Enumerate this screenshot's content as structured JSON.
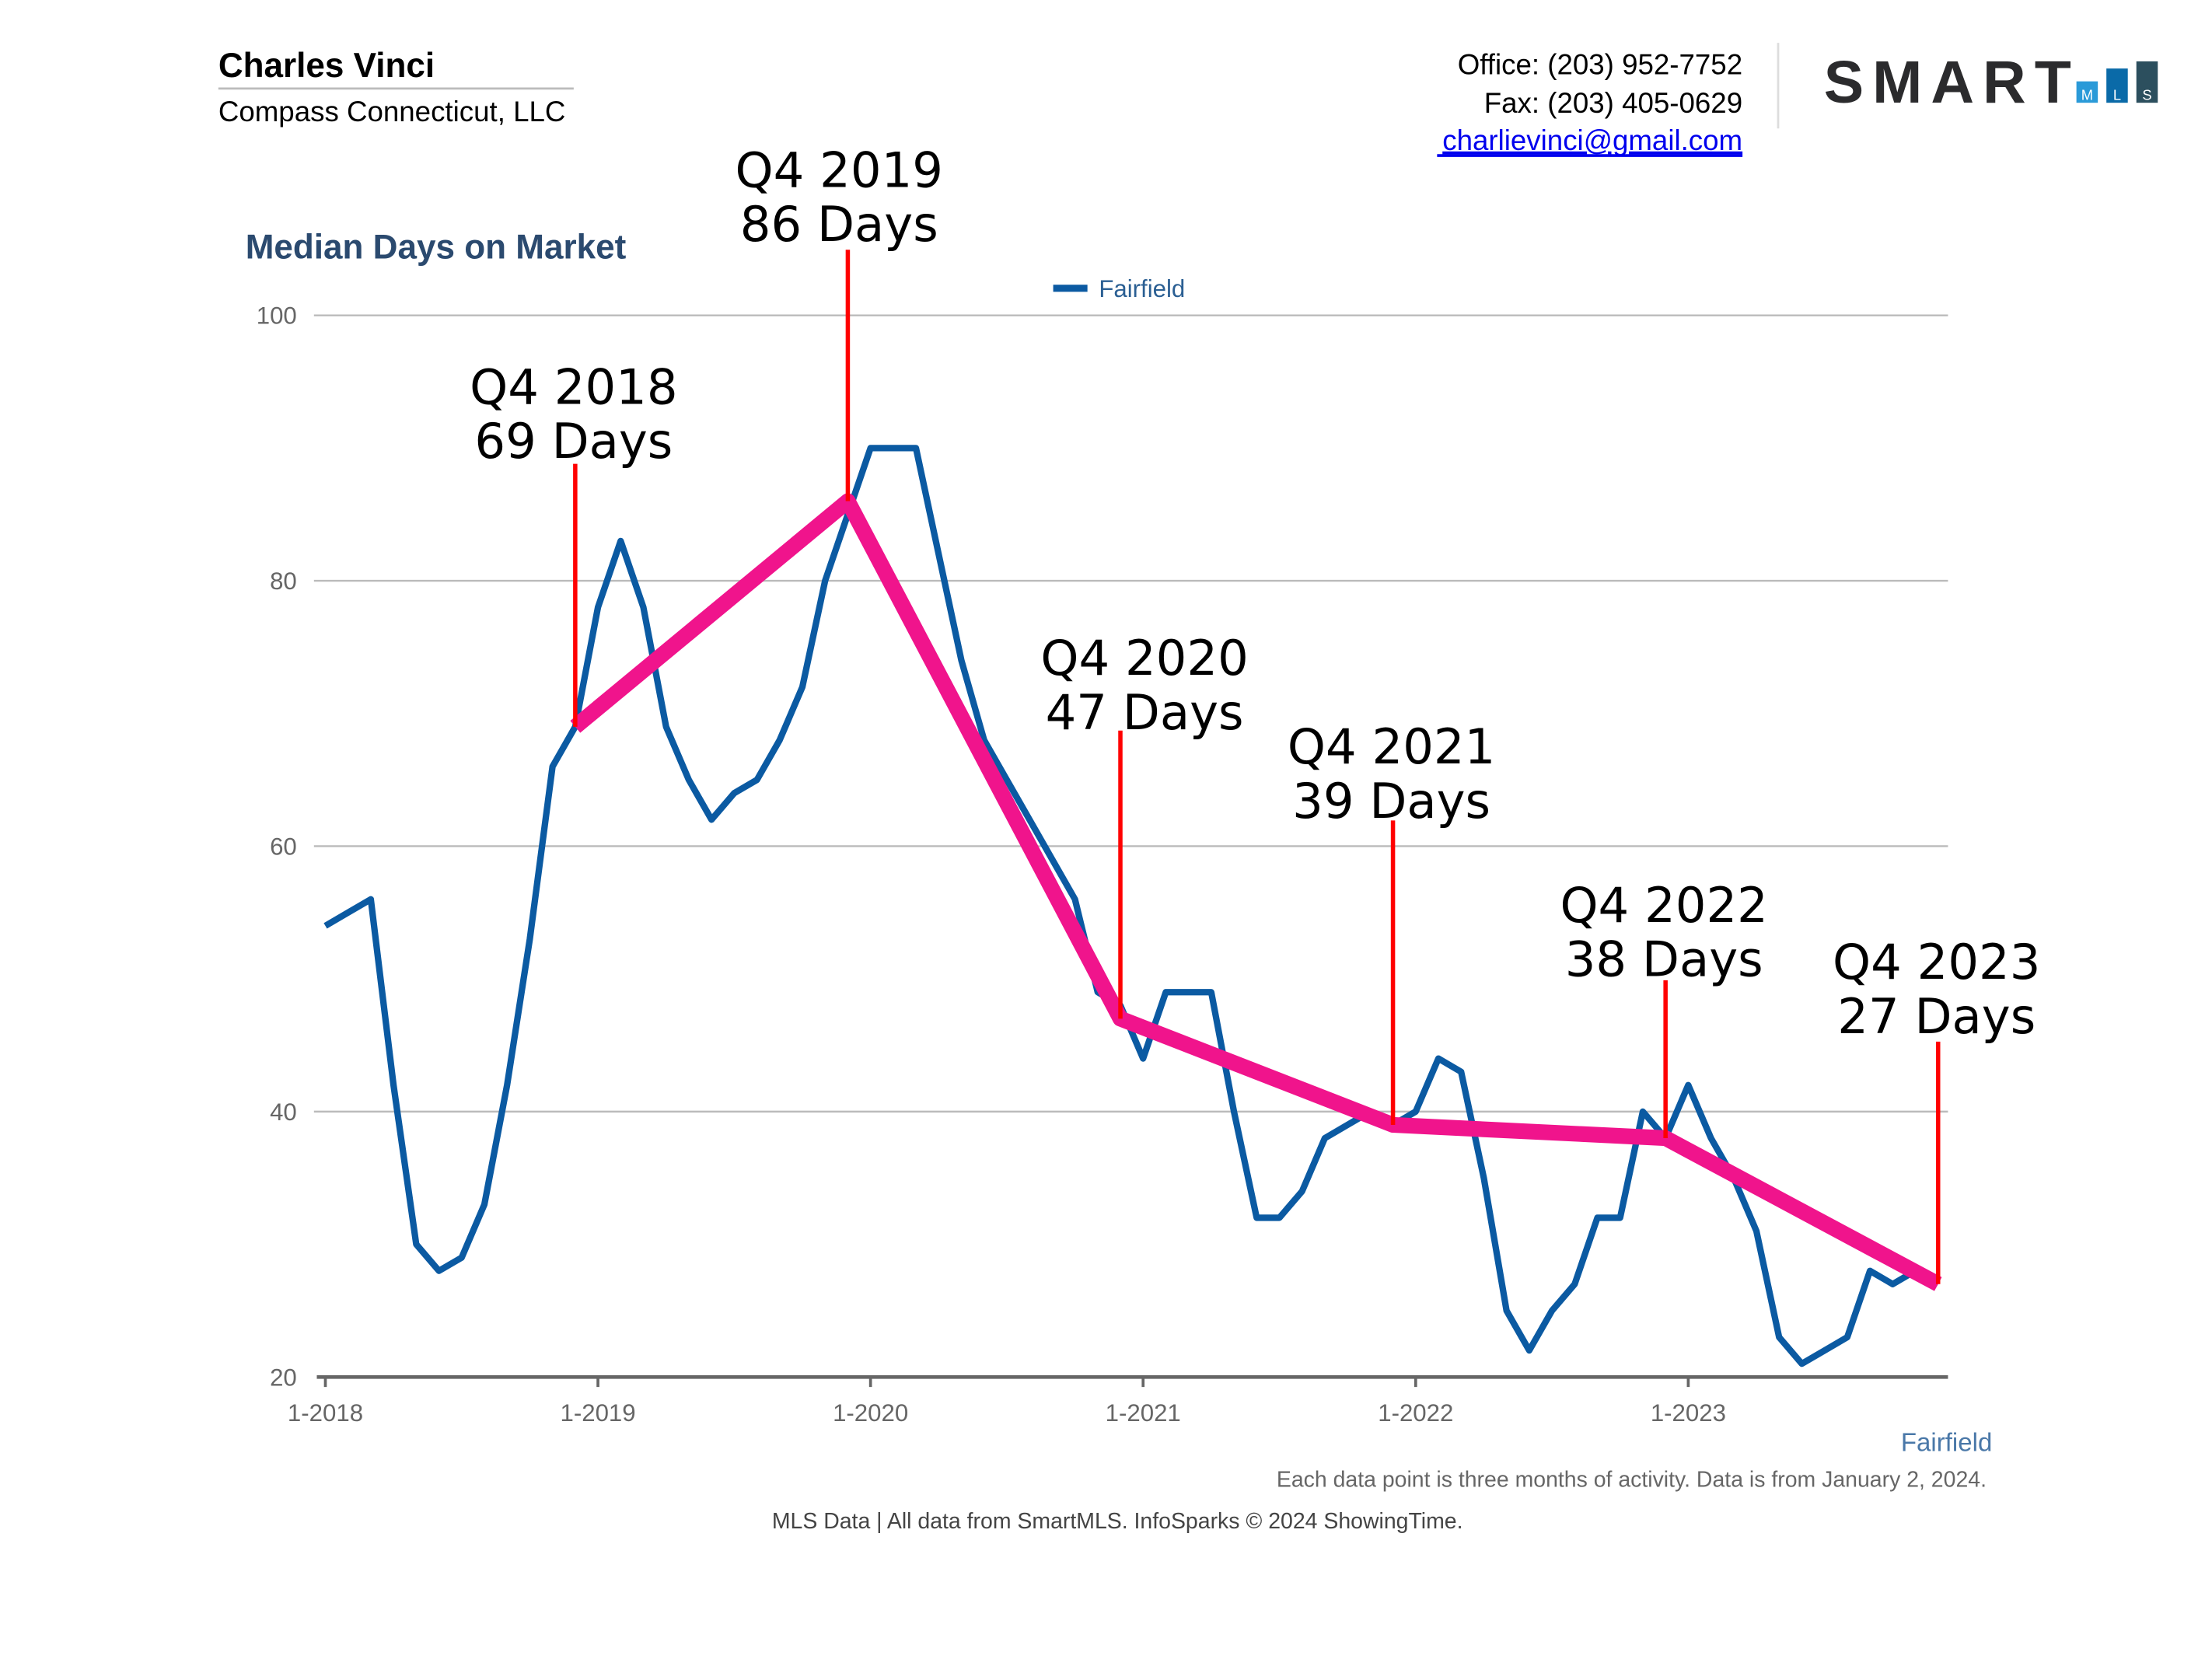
{
  "header": {
    "agent_name": "Charles Vinci",
    "company": "Compass Connecticut, LLC",
    "office": "Office: (203) 952-7752",
    "fax": "Fax: (203) 405-0629",
    "email": "charlievinci@gmail.com",
    "logo": {
      "text": "SMART",
      "sub": [
        "M",
        "L",
        "S"
      ],
      "colors": [
        "#2a9ad8",
        "#0a6aa8",
        "#2c4f5e"
      ]
    }
  },
  "chart_data": {
    "type": "line",
    "title": "Median Days on Market",
    "ylim": [
      20,
      100
    ],
    "yticks": [
      20,
      40,
      60,
      80,
      100
    ],
    "xtick_labels": [
      "1-2018",
      "1-2019",
      "1-2020",
      "1-2021",
      "1-2022",
      "1-2023"
    ],
    "grid": true,
    "legend": {
      "placement": "top-center",
      "entries": [
        "Fairfield"
      ]
    },
    "x_axis_caption": "Fairfield",
    "series": [
      {
        "name": "Fairfield",
        "color": "#0b5aa2",
        "x_start": "1-2018",
        "frequency": "monthly",
        "values": [
          54,
          55,
          56,
          42,
          30,
          28,
          29,
          33,
          42,
          53,
          66,
          69,
          78,
          83,
          78,
          69,
          65,
          62,
          64,
          65,
          68,
          72,
          80,
          85,
          90,
          90,
          90,
          82,
          74,
          68,
          65,
          62,
          59,
          56,
          49,
          48,
          44,
          49,
          49,
          49,
          40,
          32,
          32,
          34,
          38,
          39,
          40,
          39,
          40,
          44,
          43,
          35,
          25,
          22,
          25,
          27,
          32,
          32,
          40,
          38,
          42,
          38,
          35,
          31,
          23,
          21,
          22,
          23,
          28,
          27,
          28,
          27
        ]
      },
      {
        "color": "#f0148c",
        "points": [
          {
            "x": "12-2018",
            "y": 69
          },
          {
            "x": "12-2019",
            "y": 86
          },
          {
            "x": "12-2020",
            "y": 47
          },
          {
            "x": "12-2021",
            "y": 39
          },
          {
            "x": "12-2022",
            "y": 38
          },
          {
            "x": "12-2023",
            "y": 27
          }
        ]
      }
    ],
    "annotations": [
      {
        "quarter": "Q4 2018",
        "days": "69 Days"
      },
      {
        "quarter": "Q4 2019",
        "days": "86 Days"
      },
      {
        "quarter": "Q4 2020",
        "days": "47 Days"
      },
      {
        "quarter": "Q4 2021",
        "days": "39 Days"
      },
      {
        "quarter": "Q4 2022",
        "days": "38 Days"
      },
      {
        "quarter": "Q4 2023",
        "days": "27 Days"
      }
    ],
    "annotation_line_color": "#ff0000"
  },
  "footer": {
    "note": "Each data point is three months of activity. Data is from January 2, 2024.",
    "source": "MLS Data | All data from SmartMLS. InfoSparks © 2024 ShowingTime."
  }
}
